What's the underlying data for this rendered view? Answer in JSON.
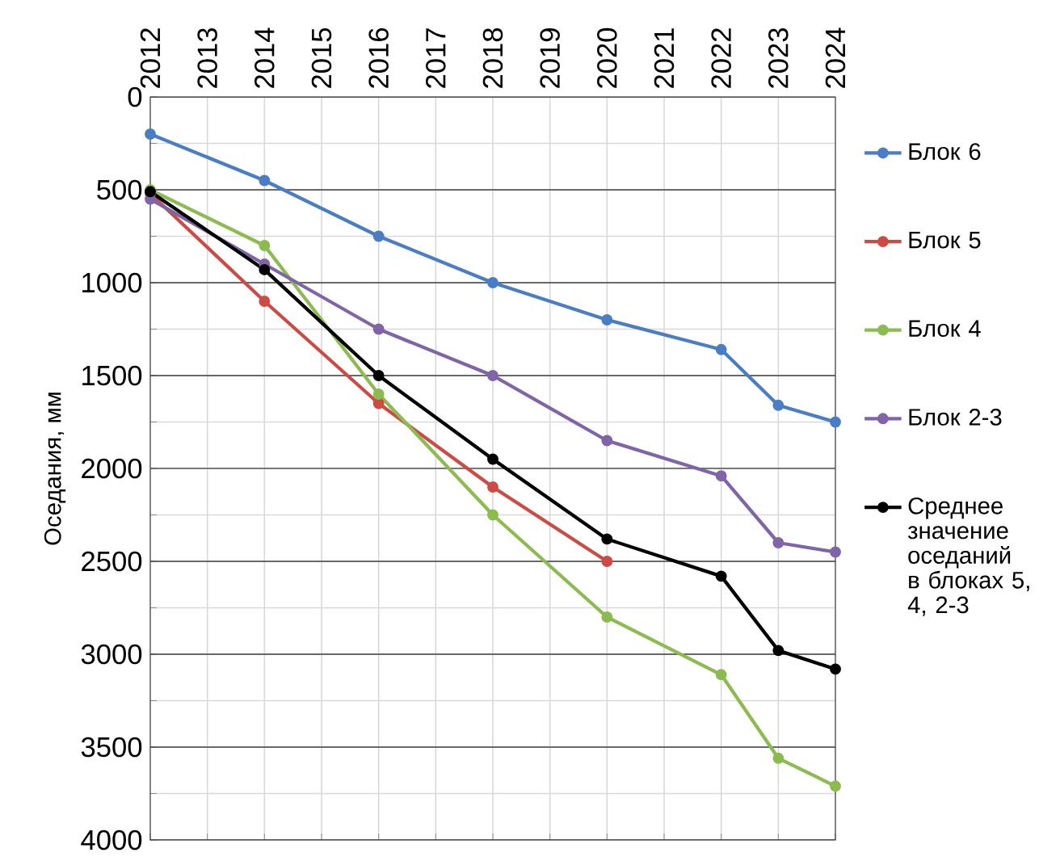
{
  "chart_data": {
    "type": "line",
    "ylabel": "Оседания, мм",
    "x": [
      2012,
      2014,
      2016,
      2018,
      2020,
      2022,
      2023,
      2024
    ],
    "xlim": [
      2012,
      2024
    ],
    "xticks": [
      2012,
      2013,
      2014,
      2015,
      2016,
      2017,
      2018,
      2019,
      2020,
      2021,
      2022,
      2023,
      2024
    ],
    "ylim": [
      4000,
      0
    ],
    "yticks": [
      0,
      {
        "value": 250,
        "label": null
      },
      500,
      {
        "value": 750,
        "label": null
      },
      1000,
      {
        "value": 1250,
        "label": null
      },
      1500,
      {
        "value": 1750,
        "label": null
      },
      2000,
      {
        "value": 2250,
        "label": null
      },
      2500,
      {
        "value": 2750,
        "label": null
      },
      3000,
      {
        "value": 3250,
        "label": null
      },
      3500,
      {
        "value": 3750,
        "label": null
      },
      4000
    ],
    "grid": true,
    "legend": "right",
    "marker": "circle",
    "line_style": "solid",
    "series": [
      {
        "name": "Блок 6",
        "color": "#4a7ec4",
        "values": [
          200,
          450,
          750,
          1000,
          1200,
          1360,
          1660,
          1750
        ]
      },
      {
        "name": "Блок 5",
        "color": "#cc4b45",
        "values": [
          520,
          1100,
          1650,
          2100,
          2500,
          null,
          null,
          null
        ]
      },
      {
        "name": "Блок 4",
        "color": "#8cbb4f",
        "values": [
          500,
          800,
          1600,
          2250,
          2800,
          3110,
          3560,
          3710
        ]
      },
      {
        "name": "Блок 2-3",
        "color": "#8064a8",
        "values": [
          550,
          900,
          1250,
          1500,
          1850,
          2040,
          2400,
          2450
        ]
      },
      {
        "name": "Среднее значение оседаний в блоках 5, 4, 2-3",
        "color": "#000000",
        "values": [
          510,
          930,
          1500,
          1950,
          2380,
          2580,
          2980,
          3080
        ]
      }
    ]
  }
}
